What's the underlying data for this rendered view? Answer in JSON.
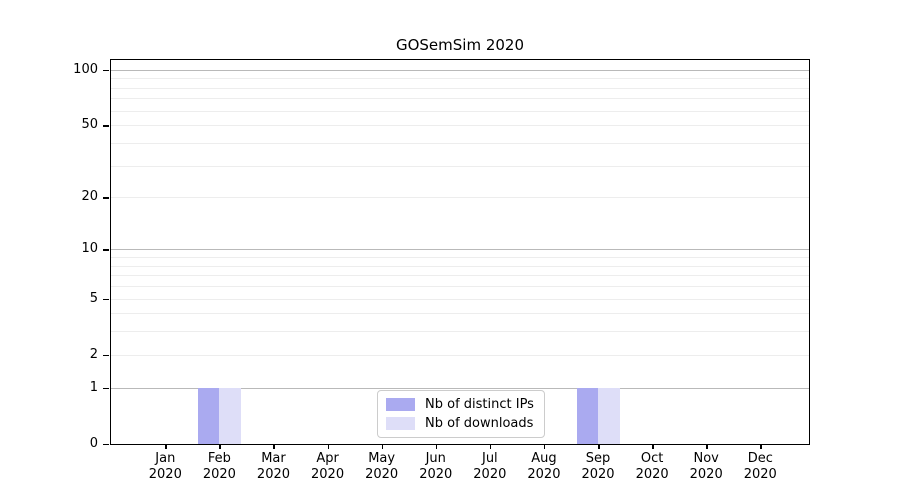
{
  "chart_data": {
    "type": "bar",
    "title": "GOSemSim 2020",
    "categories": [
      "Jan 2020",
      "Feb 2020",
      "Mar 2020",
      "Apr 2020",
      "May 2020",
      "Jun 2020",
      "Jul 2020",
      "Aug 2020",
      "Sep 2020",
      "Oct 2020",
      "Nov 2020",
      "Dec 2020"
    ],
    "x_tick_labels_line1": [
      "Jan",
      "Feb",
      "Mar",
      "Apr",
      "May",
      "Jun",
      "Jul",
      "Aug",
      "Sep",
      "Oct",
      "Nov",
      "Dec"
    ],
    "x_tick_labels_line2": [
      "2020",
      "2020",
      "2020",
      "2020",
      "2020",
      "2020",
      "2020",
      "2020",
      "2020",
      "2020",
      "2020",
      "2020"
    ],
    "series": [
      {
        "name": "Nb of distinct IPs",
        "color": "#aaaaf0",
        "values": [
          0,
          1,
          0,
          0,
          0,
          0,
          0,
          0,
          1,
          0,
          0,
          0
        ]
      },
      {
        "name": "Nb of downloads",
        "color": "#dedef8",
        "values": [
          0,
          1,
          0,
          0,
          0,
          0,
          0,
          0,
          1,
          0,
          0,
          0
        ]
      }
    ],
    "y_axis": {
      "scale": "log1p",
      "tick_values": [
        0,
        1,
        2,
        5,
        10,
        20,
        50,
        100
      ],
      "tick_labels": [
        "0",
        "1",
        "2",
        "5",
        "10",
        "20",
        "50",
        "100"
      ],
      "major_grid_values": [
        1,
        10,
        100
      ],
      "minor_grid_values": [
        2,
        3,
        4,
        5,
        6,
        7,
        8,
        9,
        20,
        30,
        40,
        50,
        60,
        70,
        80,
        90
      ],
      "ylim": [
        0,
        116
      ]
    },
    "legend": {
      "position": "bottom-center",
      "items": [
        "Nb of distinct IPs",
        "Nb of downloads"
      ]
    },
    "colors": {
      "grid_major": "#b9b9b9",
      "grid_minor": "#ededed",
      "spine": "#000000",
      "text": "#000000",
      "legend_border": "#cccccc"
    }
  }
}
